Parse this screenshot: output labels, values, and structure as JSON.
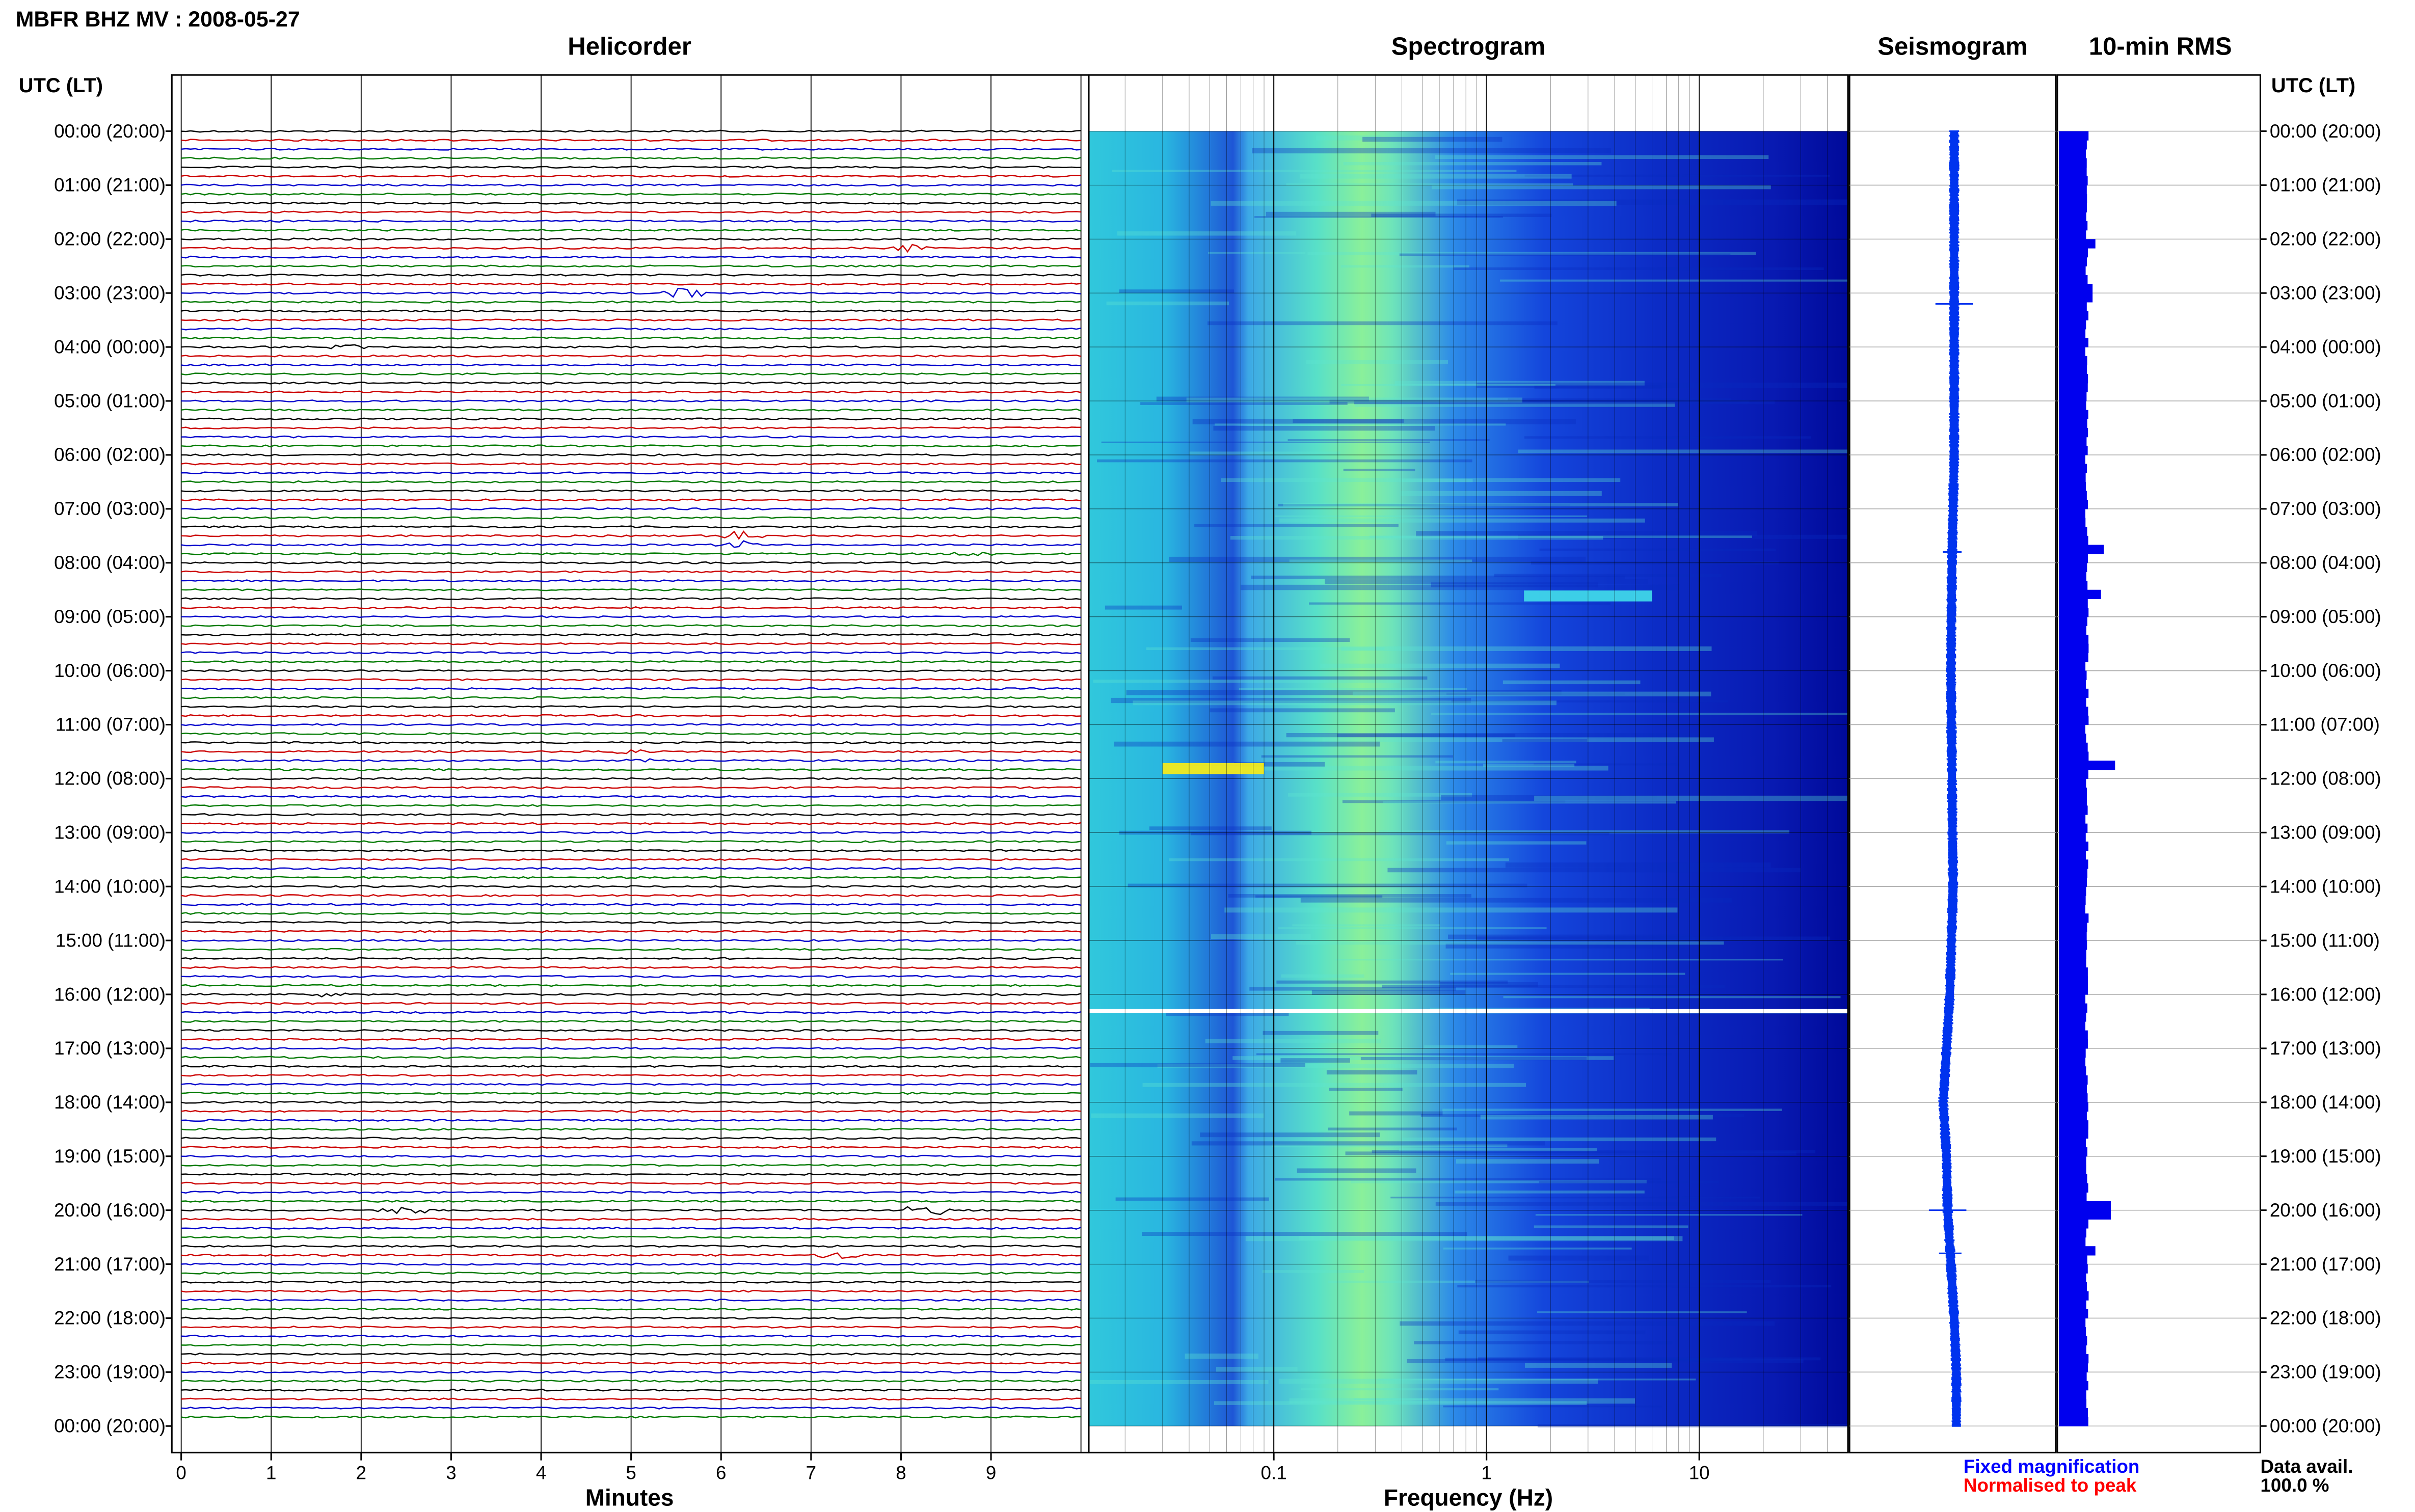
{
  "header": {
    "station_title": "MBFR BHZ MV : 2008-05-27",
    "panel_titles": {
      "helicorder": "Helicorder",
      "spectrogram": "Spectrogram",
      "seismogram": "Seismogram",
      "rms": "10-min RMS"
    },
    "time_axis_title": "UTC (LT)"
  },
  "footer": {
    "fixed_magnification": "Fixed magnification",
    "normalised_to_peak": "Normalised to peak",
    "data_avail_label": "Data avail.",
    "data_avail_value": "100.0 %"
  },
  "colors": {
    "trace_cycle": [
      "#000000",
      "#cc0000",
      "#0000cc",
      "#007a00"
    ],
    "fixed_magnification": "#0000ff",
    "normalised_to_peak": "#ff0000",
    "seismogram": "#0033ee",
    "rms_bars": "#0000ee",
    "spectro_low": "#000a9a",
    "spectro_mid": "#29d6e6",
    "spectro_high": "#f2ea1e"
  },
  "chart_data": [
    {
      "type": "line",
      "title": "Helicorder",
      "xlabel": "Minutes",
      "x_tick_labels": [
        "0",
        "1",
        "2",
        "3",
        "4",
        "5",
        "6",
        "7",
        "8",
        "9"
      ],
      "xlim": [
        0,
        10
      ],
      "y_tick_labels": [
        "00:00 (20:00)",
        "01:00 (21:00)",
        "02:00 (22:00)",
        "03:00 (23:00)",
        "04:00 (00:00)",
        "05:00 (01:00)",
        "06:00 (02:00)",
        "07:00 (03:00)",
        "08:00 (04:00)",
        "09:00 (05:00)",
        "10:00 (06:00)",
        "11:00 (07:00)",
        "12:00 (08:00)",
        "13:00 (09:00)",
        "14:00 (10:00)",
        "15:00 (11:00)",
        "16:00 (12:00)",
        "17:00 (13:00)",
        "18:00 (14:00)",
        "19:00 (15:00)",
        "20:00 (16:00)",
        "21:00 (17:00)",
        "22:00 (18:00)",
        "23:00 (19:00)",
        "00:00 (20:00)"
      ],
      "traces_count": 144,
      "minutes_per_trace": 10,
      "events": [
        {
          "hour": 2.1,
          "minute": 8.1,
          "amp": 3
        },
        {
          "hour": 3.0,
          "minute": 5.6,
          "amp": 5
        },
        {
          "hour": 4.0,
          "minute": 1.8,
          "amp": 2
        },
        {
          "hour": 7.6,
          "minute": 6.2,
          "amp": 3
        },
        {
          "hour": 7.8,
          "minute": 8.8,
          "amp": 2
        },
        {
          "hour": 11.6,
          "minute": 5.0,
          "amp": 2
        },
        {
          "hour": 16.0,
          "minute": 1.6,
          "amp": 2
        },
        {
          "hour": 20.0,
          "minute": 2.5,
          "amp": 5
        },
        {
          "hour": 20.0,
          "minute": 8.3,
          "amp": 5
        },
        {
          "hour": 20.8,
          "minute": 7.3,
          "amp": 3
        }
      ]
    },
    {
      "type": "heatmap",
      "title": "Spectrogram",
      "xlabel": "Frequency (Hz)",
      "x_scale": "log",
      "x_tick_labels": [
        "0.1",
        "1",
        "10"
      ],
      "xlim": [
        0.0135,
        50
      ],
      "y_tick_labels": [
        "00:00 (20:00)",
        "01:00 (21:00)",
        "02:00 (22:00)",
        "03:00 (23:00)",
        "04:00 (00:00)",
        "05:00 (01:00)",
        "06:00 (02:00)",
        "07:00 (03:00)",
        "08:00 (04:00)",
        "09:00 (05:00)",
        "10:00 (06:00)",
        "11:00 (07:00)",
        "12:00 (08:00)",
        "13:00 (09:00)",
        "14:00 (10:00)",
        "15:00 (11:00)",
        "16:00 (12:00)",
        "17:00 (13:00)",
        "18:00 (14:00)",
        "19:00 (15:00)",
        "20:00 (16:00)",
        "21:00 (17:00)",
        "22:00 (18:00)",
        "23:00 (19:00)",
        "00:00 (20:00)"
      ],
      "peak_band_hz": [
        0.2,
        0.6
      ],
      "gap_hour": 16.3,
      "features": [
        {
          "hour": 11.8,
          "f_lo": 0.03,
          "f_hi": 0.09,
          "level": "high"
        },
        {
          "hour": 8.6,
          "f_lo": 1.5,
          "f_hi": 6.0,
          "level": "mid"
        }
      ]
    },
    {
      "type": "line",
      "title": "Seismogram",
      "hours": [
        0,
        2,
        4,
        6,
        8,
        10,
        12,
        14,
        16,
        17,
        18,
        19,
        20,
        21,
        22,
        23,
        24
      ],
      "offset": [
        0,
        0,
        0,
        0,
        -0.1,
        -0.15,
        -0.1,
        -0.05,
        -0.2,
        -0.35,
        -0.5,
        -0.35,
        -0.3,
        -0.15,
        0,
        0.1,
        0.1
      ],
      "spikes": [
        {
          "hour": 3.2,
          "amp": 1.0
        },
        {
          "hour": 7.8,
          "amp": 0.5
        },
        {
          "hour": 20.0,
          "amp": 1.0
        },
        {
          "hour": 20.8,
          "amp": 0.6
        }
      ]
    },
    {
      "type": "bar",
      "title": "10-min RMS",
      "orientation": "horizontal",
      "bins": 144,
      "baseline": 1.0,
      "peaks": [
        {
          "hour": 2.1,
          "value": 1.3
        },
        {
          "hour": 3.0,
          "value": 1.2
        },
        {
          "hour": 7.8,
          "value": 1.6
        },
        {
          "hour": 8.6,
          "value": 1.5
        },
        {
          "hour": 11.8,
          "value": 2.0
        },
        {
          "hour": 20.0,
          "value": 1.85
        },
        {
          "hour": 20.8,
          "value": 1.3
        }
      ]
    }
  ]
}
